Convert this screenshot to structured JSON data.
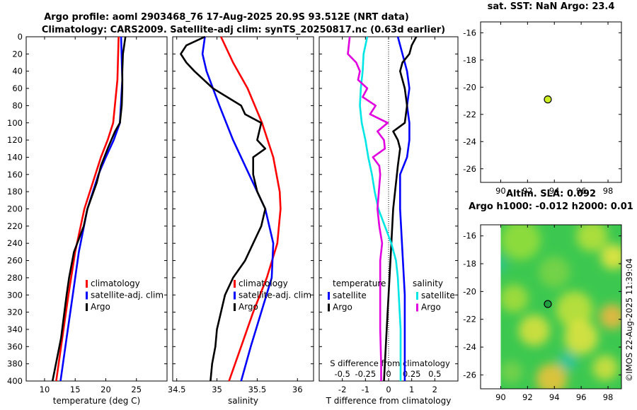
{
  "header": {
    "title_line1": "Argo profile: aoml 2903468_76 17-Aug-2025 20.9S 93.512E (NRT data)",
    "title_line2": "Climatology: CARS2009. Satellite-adj clim: synTS_20250817.nc (0.63d earlier)"
  },
  "colors": {
    "climatology": "#ff0000",
    "satellite": "#0000ff",
    "argo": "#000000",
    "cyan": "#00e5e5",
    "magenta": "#e000e0",
    "marker": "#ccee22"
  },
  "watermark": "©IMOS 22-Aug-2025 11:39:04",
  "chart_data": [
    {
      "type": "line",
      "id": "temperature",
      "xlabel": "temperature (deg C)",
      "ylabel": "",
      "xlim": [
        7,
        30
      ],
      "ylim": [
        400,
        0
      ],
      "xticks": [
        10,
        15,
        20,
        25
      ],
      "yticks": [
        0,
        20,
        40,
        60,
        80,
        100,
        120,
        140,
        160,
        180,
        200,
        220,
        240,
        260,
        280,
        300,
        320,
        340,
        360,
        380,
        400
      ],
      "legend": [
        "climatology",
        "satellite-adj. clim",
        "Argo"
      ],
      "series": [
        {
          "name": "climatology",
          "color": "red",
          "depth": [
            0,
            50,
            100,
            120,
            140,
            160,
            200,
            250,
            300,
            350,
            400
          ],
          "values": [
            22.1,
            21.9,
            21.2,
            20.3,
            19.2,
            18.3,
            16.5,
            15.0,
            13.9,
            12.9,
            11.9
          ]
        },
        {
          "name": "satellite-adj. clim",
          "color": "blue",
          "depth": [
            0,
            50,
            100,
            120,
            140,
            160,
            200,
            250,
            300,
            350,
            400
          ],
          "values": [
            22.5,
            22.7,
            22.3,
            21.3,
            20.0,
            18.8,
            17.0,
            15.6,
            14.6,
            13.6,
            12.6
          ]
        },
        {
          "name": "Argo",
          "color": "black",
          "depth": [
            0,
            20,
            40,
            60,
            80,
            100,
            110,
            130,
            150,
            170,
            200,
            220,
            250,
            280,
            300,
            350,
            400
          ],
          "values": [
            23.2,
            22.8,
            22.7,
            22.7,
            22.6,
            22.3,
            21.5,
            20.3,
            19.2,
            18.5,
            17.0,
            16.4,
            14.8,
            14.0,
            13.6,
            12.7,
            11.3
          ]
        }
      ]
    },
    {
      "type": "line",
      "id": "salinity",
      "xlabel": "salinity",
      "xlim": [
        34.45,
        36.2
      ],
      "ylim": [
        400,
        0
      ],
      "xticks": [
        34.5,
        35,
        35.5,
        36
      ],
      "legend": [
        "climatology",
        "satellite-adj. clim",
        "Argo"
      ],
      "series": [
        {
          "name": "climatology",
          "color": "red",
          "depth": [
            0,
            30,
            60,
            100,
            140,
            180,
            200,
            240,
            280,
            320,
            360,
            400
          ],
          "values": [
            35.05,
            35.2,
            35.38,
            35.56,
            35.7,
            35.78,
            35.79,
            35.75,
            35.62,
            35.45,
            35.3,
            35.15
          ]
        },
        {
          "name": "satellite-adj. clim",
          "color": "blue",
          "depth": [
            0,
            20,
            40,
            80,
            120,
            160,
            200,
            240,
            280,
            320,
            360,
            400
          ],
          "values": [
            34.85,
            34.82,
            34.87,
            35.03,
            35.2,
            35.4,
            35.6,
            35.7,
            35.68,
            35.55,
            35.42,
            35.3
          ]
        },
        {
          "name": "Argo",
          "color": "black",
          "depth": [
            0,
            10,
            20,
            30,
            40,
            60,
            80,
            90,
            100,
            120,
            130,
            140,
            160,
            180,
            200,
            220,
            240,
            260,
            280,
            300,
            320,
            340,
            360,
            380,
            400
          ],
          "values": [
            34.85,
            34.62,
            34.55,
            34.62,
            34.72,
            34.95,
            35.3,
            35.35,
            35.55,
            35.5,
            35.6,
            35.45,
            35.45,
            35.5,
            35.6,
            35.55,
            35.45,
            35.35,
            35.2,
            35.1,
            35.05,
            35.0,
            34.98,
            34.94,
            34.92
          ]
        }
      ]
    },
    {
      "type": "line",
      "id": "differences",
      "xlabel": "T difference from climatology",
      "top_axis_label": "S difference from climatology",
      "xlim": [
        -3,
        3
      ],
      "ylim": [
        400,
        0
      ],
      "xticks": [
        -2,
        -1,
        0,
        1,
        2
      ],
      "s_ticks": [
        -0.5,
        -0.25,
        0,
        0.25,
        0.5
      ],
      "s_tick_labels": [
        "-0.5",
        "-0.25",
        "0",
        "0.25",
        "0.5"
      ],
      "legend_temperature_title": "temperature",
      "legend_salinity_title": "salinity",
      "legend_temperature": [
        "satellite",
        "Argo"
      ],
      "legend_salinity": [
        "satellite",
        "Argo"
      ],
      "series": [
        {
          "name": "T satellite",
          "color": "blue",
          "depth": [
            0,
            20,
            40,
            60,
            80,
            100,
            120,
            140,
            160,
            200,
            250,
            300,
            350,
            400
          ],
          "values": [
            0.4,
            0.6,
            0.8,
            0.9,
            0.8,
            0.9,
            0.9,
            0.8,
            0.5,
            0.5,
            0.6,
            0.7,
            0.7,
            0.7
          ]
        },
        {
          "name": "T Argo",
          "color": "black",
          "depth": [
            0,
            10,
            20,
            30,
            40,
            60,
            80,
            100,
            110,
            120,
            130,
            150,
            200,
            250,
            300,
            350,
            400
          ],
          "values": [
            1.2,
            1.0,
            0.9,
            0.6,
            0.5,
            0.7,
            0.8,
            0.7,
            0.2,
            0.4,
            0.5,
            0.4,
            0.2,
            0.1,
            0.0,
            -0.1,
            -0.2
          ]
        },
        {
          "name": "S satellite",
          "color": "cyan",
          "depth": [
            0,
            20,
            40,
            60,
            80,
            100,
            120,
            140,
            160,
            180,
            200,
            220,
            240,
            260,
            280,
            300,
            340,
            380,
            400
          ],
          "values": [
            -0.23,
            -0.27,
            -0.28,
            -0.3,
            -0.31,
            -0.29,
            -0.25,
            -0.22,
            -0.18,
            -0.15,
            -0.11,
            -0.04,
            0.03,
            0.08,
            0.1,
            0.11,
            0.13,
            0.13,
            0.13
          ]
        },
        {
          "name": "S Argo",
          "color": "magenta",
          "depth": [
            0,
            20,
            30,
            40,
            50,
            60,
            70,
            80,
            90,
            100,
            110,
            120,
            130,
            140,
            150,
            160,
            200,
            220,
            240,
            260,
            300,
            340,
            380,
            400
          ],
          "values": [
            -0.42,
            -0.44,
            -0.35,
            -0.31,
            -0.33,
            -0.23,
            -0.28,
            -0.14,
            -0.2,
            -0.01,
            -0.12,
            -0.05,
            -0.04,
            -0.17,
            -0.1,
            -0.09,
            -0.12,
            -0.1,
            -0.07,
            -0.09,
            -0.09,
            -0.09,
            -0.08,
            -0.08
          ]
        }
      ]
    },
    {
      "type": "scatter",
      "id": "sst_map",
      "title": "sat. SST: NaN Argo: 23.4",
      "xlim": [
        88.5,
        99
      ],
      "ylim": [
        -27,
        -15.2
      ],
      "xticks": [
        90,
        92,
        94,
        96,
        98
      ],
      "yticks": [
        -16,
        -18,
        -20,
        -22,
        -24,
        -26
      ],
      "points": [
        {
          "x": 93.512,
          "y": -20.9
        }
      ]
    },
    {
      "type": "heatmap",
      "id": "sla_map",
      "title_line1": "Altim. SLA: 0.092",
      "title_line2": "Argo h1000: -0.012 h2000: 0.01",
      "xlim": [
        88.5,
        99
      ],
      "ylim": [
        -27,
        -15.2
      ],
      "xticks": [
        90,
        92,
        94,
        96,
        98
      ],
      "yticks": [
        -16,
        -18,
        -20,
        -22,
        -24,
        -26
      ],
      "data_region_lon": [
        90,
        99
      ],
      "points": [
        {
          "x": 93.512,
          "y": -20.9
        }
      ]
    }
  ]
}
